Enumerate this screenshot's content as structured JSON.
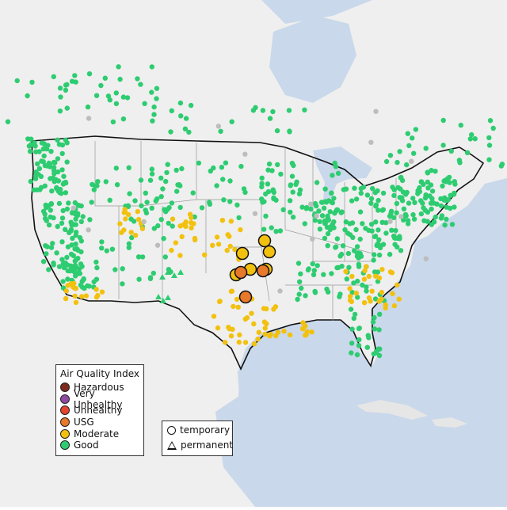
{
  "legend": {
    "title": "Air Quality Index",
    "categories": [
      {
        "label": "Hazardous",
        "color": "#7e2a1a"
      },
      {
        "label": "Very Unhealthy",
        "color": "#8e4ba0"
      },
      {
        "label": "Unhealthy",
        "color": "#e5452f"
      },
      {
        "label": "USG",
        "color": "#e8782a"
      },
      {
        "label": "Moderate",
        "color": "#f2c10f"
      },
      {
        "label": "Good",
        "color": "#2ecc71"
      }
    ]
  },
  "site_legend": {
    "temporary": "temporary",
    "permanent": "permanent"
  },
  "colors": {
    "land": "#efefef",
    "water": "#c9d8ea",
    "border": "#111111",
    "state_line": "#9a9a9a",
    "no_data": "#bdbdbd"
  }
}
